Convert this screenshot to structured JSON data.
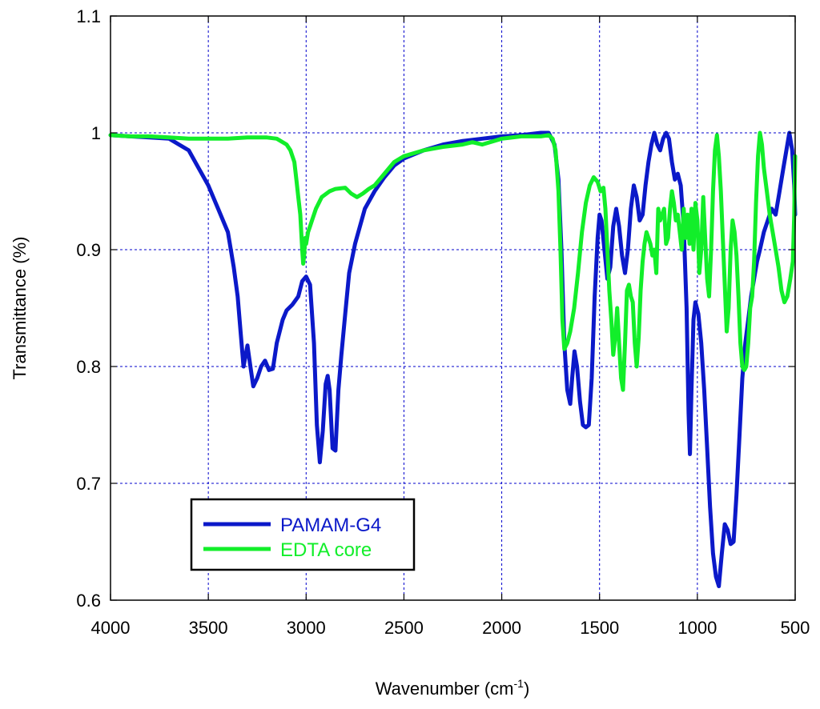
{
  "chart_data": {
    "type": "line",
    "xlabel": "Wavenumber (cm",
    "xlabel_sup": "-1",
    "xlabel_close": ")",
    "ylabel": "Transmittance (%)",
    "xlim": [
      4000,
      500
    ],
    "ylim": [
      0.6,
      1.1
    ],
    "x_reversed": true,
    "grid": true,
    "x_ticks": [
      4000,
      3500,
      3000,
      2500,
      2000,
      1500,
      1000,
      500
    ],
    "x_tick_labels": [
      "4000",
      "3500",
      "3000",
      "2500",
      "2000",
      "1500",
      "1000",
      "500"
    ],
    "y_ticks": [
      0.6,
      0.7,
      0.8,
      0.9,
      1.0,
      1.1
    ],
    "y_tick_labels": [
      "0.6",
      "0.7",
      "0.8",
      "0.9",
      "1",
      "1.1"
    ],
    "legend_position": "bottom-left",
    "colors": {
      "axis": "#000000",
      "grid": "#0000cc",
      "pamam": "#0b19c9",
      "edta": "#12ee2a"
    },
    "series": [
      {
        "name": "PAMAM-G4",
        "points": [
          [
            4000,
            0.998
          ],
          [
            3900,
            0.997
          ],
          [
            3800,
            0.996
          ],
          [
            3700,
            0.995
          ],
          [
            3650,
            0.99
          ],
          [
            3600,
            0.985
          ],
          [
            3550,
            0.97
          ],
          [
            3500,
            0.955
          ],
          [
            3450,
            0.935
          ],
          [
            3400,
            0.915
          ],
          [
            3370,
            0.885
          ],
          [
            3350,
            0.86
          ],
          [
            3335,
            0.83
          ],
          [
            3320,
            0.8
          ],
          [
            3300,
            0.818
          ],
          [
            3285,
            0.8
          ],
          [
            3270,
            0.783
          ],
          [
            3250,
            0.79
          ],
          [
            3230,
            0.8
          ],
          [
            3210,
            0.805
          ],
          [
            3190,
            0.797
          ],
          [
            3170,
            0.798
          ],
          [
            3150,
            0.82
          ],
          [
            3120,
            0.84
          ],
          [
            3100,
            0.848
          ],
          [
            3070,
            0.853
          ],
          [
            3040,
            0.86
          ],
          [
            3020,
            0.873
          ],
          [
            3000,
            0.877
          ],
          [
            2980,
            0.87
          ],
          [
            2960,
            0.82
          ],
          [
            2945,
            0.75
          ],
          [
            2930,
            0.718
          ],
          [
            2915,
            0.745
          ],
          [
            2900,
            0.785
          ],
          [
            2890,
            0.792
          ],
          [
            2880,
            0.78
          ],
          [
            2865,
            0.73
          ],
          [
            2850,
            0.728
          ],
          [
            2835,
            0.78
          ],
          [
            2820,
            0.81
          ],
          [
            2800,
            0.845
          ],
          [
            2780,
            0.88
          ],
          [
            2750,
            0.905
          ],
          [
            2700,
            0.935
          ],
          [
            2650,
            0.95
          ],
          [
            2600,
            0.962
          ],
          [
            2550,
            0.972
          ],
          [
            2500,
            0.978
          ],
          [
            2400,
            0.985
          ],
          [
            2300,
            0.99
          ],
          [
            2200,
            0.993
          ],
          [
            2100,
            0.995
          ],
          [
            2000,
            0.997
          ],
          [
            1900,
            0.998
          ],
          [
            1800,
            1.0
          ],
          [
            1760,
            1.0
          ],
          [
            1730,
            0.99
          ],
          [
            1710,
            0.96
          ],
          [
            1695,
            0.9
          ],
          [
            1680,
            0.82
          ],
          [
            1665,
            0.78
          ],
          [
            1650,
            0.768
          ],
          [
            1640,
            0.79
          ],
          [
            1628,
            0.813
          ],
          [
            1615,
            0.8
          ],
          [
            1600,
            0.77
          ],
          [
            1585,
            0.75
          ],
          [
            1570,
            0.748
          ],
          [
            1555,
            0.75
          ],
          [
            1540,
            0.79
          ],
          [
            1525,
            0.86
          ],
          [
            1510,
            0.91
          ],
          [
            1500,
            0.93
          ],
          [
            1490,
            0.925
          ],
          [
            1475,
            0.9
          ],
          [
            1460,
            0.875
          ],
          [
            1445,
            0.885
          ],
          [
            1430,
            0.92
          ],
          [
            1415,
            0.935
          ],
          [
            1400,
            0.92
          ],
          [
            1385,
            0.895
          ],
          [
            1370,
            0.88
          ],
          [
            1355,
            0.9
          ],
          [
            1340,
            0.935
          ],
          [
            1325,
            0.955
          ],
          [
            1310,
            0.945
          ],
          [
            1295,
            0.925
          ],
          [
            1280,
            0.93
          ],
          [
            1265,
            0.955
          ],
          [
            1250,
            0.975
          ],
          [
            1235,
            0.99
          ],
          [
            1220,
            1.0
          ],
          [
            1205,
            0.99
          ],
          [
            1190,
            0.985
          ],
          [
            1175,
            0.995
          ],
          [
            1160,
            1.0
          ],
          [
            1145,
            0.995
          ],
          [
            1130,
            0.975
          ],
          [
            1115,
            0.96
          ],
          [
            1100,
            0.965
          ],
          [
            1085,
            0.955
          ],
          [
            1070,
            0.92
          ],
          [
            1055,
            0.85
          ],
          [
            1045,
            0.76
          ],
          [
            1038,
            0.725
          ],
          [
            1030,
            0.78
          ],
          [
            1020,
            0.84
          ],
          [
            1010,
            0.855
          ],
          [
            995,
            0.845
          ],
          [
            980,
            0.82
          ],
          [
            965,
            0.78
          ],
          [
            950,
            0.73
          ],
          [
            935,
            0.68
          ],
          [
            920,
            0.64
          ],
          [
            905,
            0.62
          ],
          [
            890,
            0.612
          ],
          [
            875,
            0.64
          ],
          [
            860,
            0.665
          ],
          [
            845,
            0.66
          ],
          [
            830,
            0.648
          ],
          [
            815,
            0.65
          ],
          [
            800,
            0.69
          ],
          [
            785,
            0.74
          ],
          [
            770,
            0.79
          ],
          [
            755,
            0.82
          ],
          [
            740,
            0.84
          ],
          [
            725,
            0.86
          ],
          [
            710,
            0.875
          ],
          [
            695,
            0.89
          ],
          [
            680,
            0.9
          ],
          [
            660,
            0.915
          ],
          [
            640,
            0.925
          ],
          [
            620,
            0.935
          ],
          [
            600,
            0.93
          ],
          [
            580,
            0.95
          ],
          [
            560,
            0.97
          ],
          [
            545,
            0.985
          ],
          [
            530,
            1.0
          ],
          [
            515,
            0.985
          ],
          [
            505,
            0.955
          ],
          [
            500,
            0.93
          ]
        ]
      },
      {
        "name": "EDTA core",
        "points": [
          [
            4000,
            0.998
          ],
          [
            3900,
            0.997
          ],
          [
            3800,
            0.997
          ],
          [
            3700,
            0.996
          ],
          [
            3600,
            0.995
          ],
          [
            3500,
            0.995
          ],
          [
            3400,
            0.995
          ],
          [
            3300,
            0.996
          ],
          [
            3200,
            0.996
          ],
          [
            3150,
            0.995
          ],
          [
            3100,
            0.99
          ],
          [
            3080,
            0.985
          ],
          [
            3060,
            0.975
          ],
          [
            3050,
            0.96
          ],
          [
            3040,
            0.945
          ],
          [
            3030,
            0.93
          ],
          [
            3020,
            0.9
          ],
          [
            3015,
            0.888
          ],
          [
            3010,
            0.895
          ],
          [
            3005,
            0.91
          ],
          [
            3000,
            0.905
          ],
          [
            2990,
            0.915
          ],
          [
            2980,
            0.92
          ],
          [
            2970,
            0.925
          ],
          [
            2950,
            0.935
          ],
          [
            2920,
            0.945
          ],
          [
            2880,
            0.95
          ],
          [
            2850,
            0.952
          ],
          [
            2800,
            0.953
          ],
          [
            2770,
            0.948
          ],
          [
            2740,
            0.945
          ],
          [
            2710,
            0.948
          ],
          [
            2680,
            0.952
          ],
          [
            2650,
            0.955
          ],
          [
            2600,
            0.965
          ],
          [
            2550,
            0.975
          ],
          [
            2500,
            0.98
          ],
          [
            2400,
            0.985
          ],
          [
            2300,
            0.988
          ],
          [
            2200,
            0.99
          ],
          [
            2150,
            0.992
          ],
          [
            2100,
            0.99
          ],
          [
            2000,
            0.995
          ],
          [
            1900,
            0.997
          ],
          [
            1800,
            0.997
          ],
          [
            1760,
            0.998
          ],
          [
            1740,
            0.995
          ],
          [
            1725,
            0.985
          ],
          [
            1710,
            0.95
          ],
          [
            1700,
            0.9
          ],
          [
            1690,
            0.84
          ],
          [
            1680,
            0.815
          ],
          [
            1665,
            0.82
          ],
          [
            1650,
            0.83
          ],
          [
            1630,
            0.85
          ],
          [
            1610,
            0.88
          ],
          [
            1590,
            0.915
          ],
          [
            1570,
            0.94
          ],
          [
            1550,
            0.955
          ],
          [
            1530,
            0.962
          ],
          [
            1510,
            0.958
          ],
          [
            1495,
            0.95
          ],
          [
            1480,
            0.953
          ],
          [
            1470,
            0.935
          ],
          [
            1460,
            0.9
          ],
          [
            1450,
            0.865
          ],
          [
            1440,
            0.84
          ],
          [
            1430,
            0.81
          ],
          [
            1420,
            0.825
          ],
          [
            1410,
            0.85
          ],
          [
            1400,
            0.82
          ],
          [
            1390,
            0.79
          ],
          [
            1380,
            0.78
          ],
          [
            1370,
            0.82
          ],
          [
            1360,
            0.865
          ],
          [
            1350,
            0.87
          ],
          [
            1340,
            0.86
          ],
          [
            1330,
            0.855
          ],
          [
            1320,
            0.82
          ],
          [
            1310,
            0.8
          ],
          [
            1300,
            0.825
          ],
          [
            1290,
            0.865
          ],
          [
            1280,
            0.89
          ],
          [
            1270,
            0.905
          ],
          [
            1260,
            0.915
          ],
          [
            1250,
            0.91
          ],
          [
            1240,
            0.905
          ],
          [
            1230,
            0.895
          ],
          [
            1220,
            0.9
          ],
          [
            1210,
            0.88
          ],
          [
            1200,
            0.935
          ],
          [
            1190,
            0.925
          ],
          [
            1180,
            0.93
          ],
          [
            1170,
            0.935
          ],
          [
            1160,
            0.905
          ],
          [
            1150,
            0.91
          ],
          [
            1140,
            0.935
          ],
          [
            1130,
            0.95
          ],
          [
            1120,
            0.94
          ],
          [
            1110,
            0.925
          ],
          [
            1100,
            0.93
          ],
          [
            1090,
            0.915
          ],
          [
            1080,
            0.9
          ],
          [
            1070,
            0.935
          ],
          [
            1060,
            0.91
          ],
          [
            1050,
            0.93
          ],
          [
            1040,
            0.905
          ],
          [
            1030,
            0.935
          ],
          [
            1020,
            0.9
          ],
          [
            1010,
            0.94
          ],
          [
            1000,
            0.925
          ],
          [
            990,
            0.88
          ],
          [
            980,
            0.9
          ],
          [
            970,
            0.945
          ],
          [
            960,
            0.91
          ],
          [
            950,
            0.875
          ],
          [
            940,
            0.86
          ],
          [
            930,
            0.9
          ],
          [
            920,
            0.95
          ],
          [
            910,
            0.985
          ],
          [
            900,
            0.998
          ],
          [
            890,
            0.98
          ],
          [
            880,
            0.95
          ],
          [
            870,
            0.91
          ],
          [
            860,
            0.87
          ],
          [
            850,
            0.83
          ],
          [
            840,
            0.85
          ],
          [
            830,
            0.9
          ],
          [
            820,
            0.925
          ],
          [
            810,
            0.915
          ],
          [
            800,
            0.895
          ],
          [
            790,
            0.86
          ],
          [
            780,
            0.82
          ],
          [
            770,
            0.8
          ],
          [
            760,
            0.797
          ],
          [
            750,
            0.8
          ],
          [
            740,
            0.82
          ],
          [
            730,
            0.85
          ],
          [
            720,
            0.86
          ],
          [
            710,
            0.89
          ],
          [
            700,
            0.94
          ],
          [
            690,
            0.98
          ],
          [
            680,
            1.0
          ],
          [
            670,
            0.99
          ],
          [
            660,
            0.97
          ],
          [
            645,
            0.95
          ],
          [
            630,
            0.93
          ],
          [
            615,
            0.915
          ],
          [
            600,
            0.9
          ],
          [
            585,
            0.885
          ],
          [
            570,
            0.865
          ],
          [
            555,
            0.855
          ],
          [
            540,
            0.86
          ],
          [
            525,
            0.875
          ],
          [
            512,
            0.89
          ],
          [
            505,
            0.93
          ],
          [
            500,
            0.98
          ]
        ]
      }
    ]
  }
}
